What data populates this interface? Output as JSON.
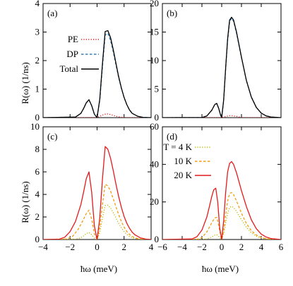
{
  "figure": {
    "x_axis_label": "ħω (meV)",
    "y_axis_label": "R(ω) (1/ns)"
  },
  "legends": {
    "a": [
      {
        "label": "PE",
        "color": "#e41a1c",
        "style": "dotted"
      },
      {
        "label": "DP",
        "color": "#377eb8",
        "style": "dashed"
      },
      {
        "label": "Total",
        "color": "#000000",
        "style": "solid"
      }
    ],
    "d": [
      {
        "label": "T = 4 K",
        "color": "#b8b800",
        "style": "dotted"
      },
      {
        "label": "10 K",
        "color": "#f39c12",
        "style": "dashed"
      },
      {
        "label": "20 K",
        "color": "#e41a1c",
        "style": "solid"
      }
    ]
  },
  "chart_data": [
    {
      "panel": "(a)",
      "type": "line",
      "xlim": [
        -4,
        4
      ],
      "ylim": [
        0,
        4
      ],
      "xticks": [
        -4,
        -2,
        0,
        2,
        4
      ],
      "yticks": [
        0,
        1,
        2,
        3,
        4
      ],
      "ylabel": "R(ω) (1/ns)",
      "xlabel": "",
      "series": [
        {
          "name": "PE",
          "color": "#e41a1c",
          "style": "dotted",
          "x": [
            -4,
            -1.0,
            -0.5,
            0,
            0.2,
            0.4,
            0.6,
            0.8,
            1.0,
            1.2,
            1.4,
            1.6,
            2.0,
            4
          ],
          "y": [
            0,
            0,
            0.005,
            0,
            0.05,
            0.09,
            0.12,
            0.13,
            0.11,
            0.08,
            0.05,
            0.03,
            0.0,
            0
          ]
        },
        {
          "name": "DP",
          "color": "#377eb8",
          "style": "dashed",
          "x": [
            -4,
            -1.6,
            -1.2,
            -1.0,
            -0.8,
            -0.6,
            -0.4,
            -0.2,
            0,
            0.2,
            0.4,
            0.6,
            0.8,
            1.0,
            1.2,
            1.4,
            1.6,
            1.8,
            2.0,
            2.2,
            2.4,
            2.6,
            3.0,
            3.4,
            4
          ],
          "y": [
            0,
            0.02,
            0.15,
            0.32,
            0.52,
            0.62,
            0.42,
            0.12,
            0,
            0.6,
            1.8,
            2.9,
            2.95,
            2.7,
            2.3,
            1.85,
            1.4,
            1.02,
            0.7,
            0.45,
            0.27,
            0.15,
            0.05,
            0.01,
            0
          ]
        },
        {
          "name": "Total",
          "color": "#000000",
          "style": "solid",
          "x": [
            -4,
            -1.6,
            -1.2,
            -1.0,
            -0.8,
            -0.6,
            -0.4,
            -0.2,
            0,
            0.2,
            0.4,
            0.6,
            0.8,
            1.0,
            1.2,
            1.4,
            1.6,
            1.8,
            2.0,
            2.2,
            2.4,
            2.6,
            3.0,
            3.4,
            4
          ],
          "y": [
            0,
            0.02,
            0.15,
            0.32,
            0.52,
            0.63,
            0.42,
            0.12,
            0,
            0.65,
            1.9,
            3.02,
            3.05,
            2.8,
            2.38,
            1.9,
            1.43,
            1.04,
            0.71,
            0.46,
            0.27,
            0.15,
            0.05,
            0.01,
            0
          ]
        }
      ]
    },
    {
      "panel": "(b)",
      "type": "line",
      "xlim": [
        -6,
        6
      ],
      "ylim": [
        0,
        20
      ],
      "xticks": [
        -6,
        -4,
        -2,
        0,
        2,
        4,
        6
      ],
      "yticks": [
        0,
        5,
        10,
        15,
        20
      ],
      "series": [
        {
          "name": "PE",
          "color": "#e41a1c",
          "style": "dotted",
          "x": [
            -6,
            0,
            0.4,
            0.8,
            1.2,
            1.6,
            2.0,
            6
          ],
          "y": [
            0,
            0,
            0.2,
            0.35,
            0.3,
            0.2,
            0,
            0
          ]
        },
        {
          "name": "DP",
          "color": "#377eb8",
          "style": "dashed",
          "x": [
            -6,
            -2.0,
            -1.5,
            -1.0,
            -0.7,
            -0.5,
            -0.3,
            -0.1,
            0,
            0.2,
            0.4,
            0.6,
            0.8,
            1.0,
            1.2,
            1.5,
            2.0,
            2.5,
            3.0,
            3.5,
            4.0,
            4.5,
            5.0,
            6
          ],
          "y": [
            0,
            0.02,
            0.3,
            1.3,
            2.3,
            2.45,
            1.6,
            0.4,
            0,
            3.0,
            8.5,
            13.5,
            16.8,
            17.4,
            16.9,
            14.8,
            10.5,
            6.5,
            3.6,
            1.8,
            0.8,
            0.3,
            0.1,
            0
          ]
        },
        {
          "name": "Total",
          "color": "#000000",
          "style": "solid",
          "x": [
            -6,
            -2.0,
            -1.5,
            -1.0,
            -0.7,
            -0.5,
            -0.3,
            -0.1,
            0,
            0.2,
            0.4,
            0.6,
            0.8,
            1.0,
            1.2,
            1.5,
            2.0,
            2.5,
            3.0,
            3.5,
            4.0,
            4.5,
            5.0,
            6
          ],
          "y": [
            0,
            0.02,
            0.3,
            1.3,
            2.3,
            2.5,
            1.6,
            0.4,
            0,
            3.1,
            8.7,
            13.8,
            17.1,
            17.6,
            17.1,
            15.0,
            10.6,
            6.5,
            3.6,
            1.8,
            0.8,
            0.3,
            0.1,
            0
          ]
        }
      ]
    },
    {
      "panel": "(c)",
      "type": "line",
      "xlim": [
        -4,
        4
      ],
      "ylim": [
        0,
        10
      ],
      "xticks": [
        -4,
        -2,
        0,
        2,
        4
      ],
      "yticks": [
        0,
        2,
        4,
        6,
        8,
        10
      ],
      "ylabel": "R(ω) (1/ns)",
      "xlabel": "ħω (meV)",
      "series": [
        {
          "name": "T = 4 K",
          "color": "#b8b800",
          "style": "dotted",
          "x": [
            -4,
            -1.6,
            -1.2,
            -1.0,
            -0.8,
            -0.6,
            -0.4,
            -0.2,
            0,
            0.2,
            0.4,
            0.6,
            0.8,
            1.0,
            1.2,
            1.4,
            1.6,
            1.8,
            2.0,
            2.2,
            2.4,
            2.6,
            3.0,
            3.4,
            4
          ],
          "y": [
            0,
            0.02,
            0.15,
            0.32,
            0.52,
            0.63,
            0.42,
            0.12,
            0,
            0.65,
            1.9,
            3.02,
            3.05,
            2.8,
            2.38,
            1.9,
            1.43,
            1.04,
            0.71,
            0.46,
            0.27,
            0.15,
            0.05,
            0.01,
            0
          ]
        },
        {
          "name": "10 K",
          "color": "#f39c12",
          "style": "dashed",
          "x": [
            -4,
            -2.2,
            -1.8,
            -1.4,
            -1.0,
            -0.8,
            -0.6,
            -0.4,
            -0.2,
            0,
            0.2,
            0.4,
            0.6,
            0.8,
            1.0,
            1.2,
            1.4,
            1.6,
            1.8,
            2.0,
            2.2,
            2.4,
            2.6,
            3.0,
            3.4,
            4
          ],
          "y": [
            0,
            0.05,
            0.3,
            0.9,
            1.8,
            2.3,
            2.6,
            1.8,
            0.5,
            0,
            1.1,
            3.1,
            4.9,
            4.75,
            4.3,
            3.6,
            2.9,
            2.2,
            1.6,
            1.1,
            0.72,
            0.45,
            0.27,
            0.08,
            0.02,
            0
          ]
        },
        {
          "name": "20 K",
          "color": "#e41a1c",
          "style": "solid",
          "x": [
            -4,
            -2.8,
            -2.4,
            -2.0,
            -1.6,
            -1.2,
            -1.0,
            -0.8,
            -0.6,
            -0.4,
            -0.2,
            0,
            0.2,
            0.4,
            0.6,
            0.8,
            1.0,
            1.2,
            1.4,
            1.6,
            1.8,
            2.0,
            2.2,
            2.4,
            2.6,
            2.8,
            3.2,
            3.6,
            4
          ],
          "y": [
            0,
            0.03,
            0.2,
            0.7,
            1.6,
            3.1,
            4.2,
            5.4,
            6.0,
            4.2,
            1.2,
            0,
            1.9,
            5.4,
            8.25,
            8.0,
            7.2,
            6.1,
            4.9,
            3.8,
            2.85,
            2.05,
            1.45,
            1.0,
            0.65,
            0.42,
            0.15,
            0.04,
            0
          ]
        }
      ]
    },
    {
      "panel": "(d)",
      "type": "line",
      "xlim": [
        -6,
        6
      ],
      "ylim": [
        0,
        60
      ],
      "xticks": [
        -6,
        -4,
        -2,
        0,
        2,
        4,
        6
      ],
      "yticks": [
        0,
        20,
        40,
        60
      ],
      "xlabel": "ħω (meV)",
      "series": [
        {
          "name": "T = 4 K",
          "color": "#b8b800",
          "style": "dotted",
          "x": [
            -6,
            -2.0,
            -1.5,
            -1.0,
            -0.7,
            -0.5,
            -0.3,
            -0.1,
            0,
            0.2,
            0.4,
            0.6,
            0.8,
            1.0,
            1.2,
            1.5,
            2.0,
            2.5,
            3.0,
            3.5,
            4.0,
            4.5,
            5.0,
            6
          ],
          "y": [
            0,
            0.02,
            0.3,
            1.3,
            2.3,
            2.5,
            1.6,
            0.4,
            0,
            3.1,
            8.7,
            13.8,
            17.1,
            17.6,
            17.1,
            15.0,
            10.6,
            6.5,
            3.6,
            1.8,
            0.8,
            0.3,
            0.1,
            0
          ]
        },
        {
          "name": "10 K",
          "color": "#f39c12",
          "style": "dashed",
          "x": [
            -6,
            -2.5,
            -2.0,
            -1.5,
            -1.0,
            -0.7,
            -0.5,
            -0.3,
            -0.1,
            0,
            0.2,
            0.4,
            0.6,
            0.8,
            1.0,
            1.2,
            1.5,
            2.0,
            2.5,
            3.0,
            3.5,
            4.0,
            4.5,
            5.0,
            6
          ],
          "y": [
            0,
            0.1,
            1.0,
            4.0,
            9.0,
            11.5,
            11.8,
            7.5,
            2.0,
            0,
            4.5,
            13.0,
            20.5,
            24.5,
            25.0,
            24.0,
            20.5,
            14.0,
            8.5,
            4.7,
            2.4,
            1.1,
            0.45,
            0.15,
            0
          ]
        },
        {
          "name": "20 K",
          "color": "#e41a1c",
          "style": "solid",
          "x": [
            -6,
            -3.0,
            -2.5,
            -2.0,
            -1.5,
            -1.2,
            -1.0,
            -0.8,
            -0.6,
            -0.4,
            -0.2,
            0,
            0.2,
            0.4,
            0.6,
            0.8,
            1.0,
            1.2,
            1.5,
            2.0,
            2.5,
            3.0,
            3.5,
            4.0,
            4.5,
            5.0,
            6
          ],
          "y": [
            0,
            0.3,
            1.5,
            5.0,
            12.0,
            18.5,
            23.0,
            26.5,
            27.3,
            20.0,
            6.0,
            0,
            10.0,
            25.0,
            36.0,
            40.5,
            41.5,
            40.0,
            35.5,
            26.0,
            17.5,
            10.5,
            5.8,
            2.9,
            1.3,
            0.5,
            0
          ]
        }
      ]
    }
  ]
}
